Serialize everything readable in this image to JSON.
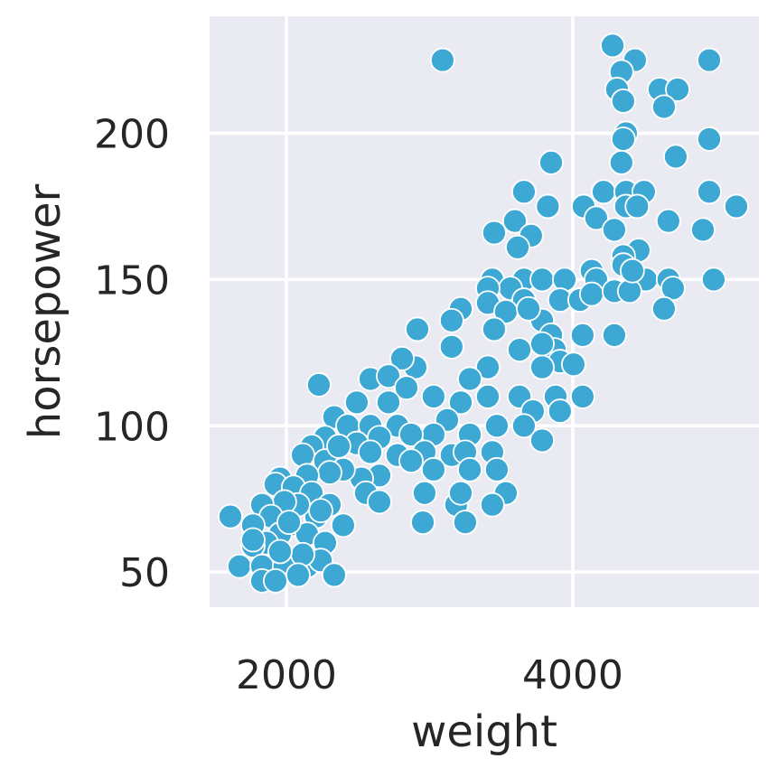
{
  "chart_data": {
    "type": "scatter",
    "title": "",
    "xlabel": "weight",
    "ylabel": "horsepower",
    "xlim": [
      1464,
      5300
    ],
    "ylim": [
      38,
      240
    ],
    "xticks": [
      2000,
      4000
    ],
    "yticks": [
      50,
      100,
      150,
      200
    ],
    "xtick_labels": [
      "2000",
      "4000"
    ],
    "ytick_labels": [
      "50",
      "100",
      "150",
      "200"
    ],
    "grid": true,
    "background_color": "#eaeaf2",
    "grid_color": "#ffffff",
    "marker_color": "#3da8d3",
    "marker_edge_color": "#ffffff",
    "points": [
      [
        3091,
        225
      ],
      [
        4278,
        230
      ],
      [
        4953,
        225
      ],
      [
        4435,
        225
      ],
      [
        4340,
        221
      ],
      [
        4309,
        215
      ],
      [
        4606,
        215
      ],
      [
        4732,
        215
      ],
      [
        4637,
        209
      ],
      [
        4353,
        211
      ],
      [
        4372,
        200
      ],
      [
        4353,
        198
      ],
      [
        4953,
        198
      ],
      [
        4719,
        192
      ],
      [
        3849,
        190
      ],
      [
        4340,
        190
      ],
      [
        4215,
        180
      ],
      [
        3659,
        180
      ],
      [
        4372,
        180
      ],
      [
        4498,
        180
      ],
      [
        4953,
        180
      ],
      [
        5142,
        175
      ],
      [
        4076,
        175
      ],
      [
        3826,
        175
      ],
      [
        4372,
        175
      ],
      [
        4450,
        175
      ],
      [
        4909,
        167
      ],
      [
        4668,
        170
      ],
      [
        4164,
        171
      ],
      [
        3451,
        166
      ],
      [
        3596,
        170
      ],
      [
        3709,
        165
      ],
      [
        3615,
        161
      ],
      [
        4290,
        167
      ],
      [
        4460,
        160
      ],
      [
        4353,
        158
      ],
      [
        4984,
        150
      ],
      [
        3438,
        150
      ],
      [
        3659,
        150
      ],
      [
        3786,
        150
      ],
      [
        3943,
        150
      ],
      [
        4132,
        153
      ],
      [
        4353,
        155
      ],
      [
        4164,
        150
      ],
      [
        4511,
        150
      ],
      [
        4668,
        150
      ],
      [
        4700,
        147
      ],
      [
        4637,
        140
      ],
      [
        3565,
        147
      ],
      [
        3911,
        143
      ],
      [
        4050,
        143
      ],
      [
        4132,
        145
      ],
      [
        3407,
        147
      ],
      [
        3659,
        143
      ],
      [
        4290,
        146
      ],
      [
        4397,
        146
      ],
      [
        4416,
        153
      ],
      [
        3407,
        142
      ],
      [
        3218,
        140
      ],
      [
        3786,
        136
      ],
      [
        3533,
        139
      ],
      [
        3691,
        140
      ],
      [
        4069,
        131
      ],
      [
        4290,
        131
      ],
      [
        3849,
        131
      ],
      [
        3451,
        133
      ],
      [
        3628,
        126
      ],
      [
        3874,
        126
      ],
      [
        3154,
        136
      ],
      [
        2915,
        133
      ],
      [
        3154,
        127
      ],
      [
        3786,
        128
      ],
      [
        3911,
        122
      ],
      [
        4006,
        121
      ],
      [
        3786,
        120
      ],
      [
        3407,
        120
      ],
      [
        2902,
        120
      ],
      [
        2808,
        123
      ],
      [
        3281,
        116
      ],
      [
        2227,
        114
      ],
      [
        2587,
        116
      ],
      [
        2713,
        117
      ],
      [
        2839,
        113
      ],
      [
        3028,
        110
      ],
      [
        3218,
        108
      ],
      [
        3407,
        110
      ],
      [
        3628,
        110
      ],
      [
        4069,
        110
      ],
      [
        3880,
        110
      ],
      [
        3722,
        105
      ],
      [
        3911,
        105
      ],
      [
        2713,
        108
      ],
      [
        2492,
        108
      ],
      [
        2334,
        103
      ],
      [
        2429,
        100
      ],
      [
        2587,
        100
      ],
      [
        2776,
        100
      ],
      [
        3123,
        102
      ],
      [
        3470,
        100
      ],
      [
        3659,
        100
      ],
      [
        3786,
        95
      ],
      [
        3281,
        97
      ],
      [
        3028,
        97
      ],
      [
        2871,
        97
      ],
      [
        2650,
        96
      ],
      [
        2492,
        94
      ],
      [
        2271,
        96
      ],
      [
        2177,
        93
      ],
      [
        2114,
        90
      ],
      [
        2271,
        88
      ],
      [
        2366,
        93
      ],
      [
        2587,
        91
      ],
      [
        2776,
        90
      ],
      [
        2965,
        91
      ],
      [
        3154,
        90
      ],
      [
        3249,
        91
      ],
      [
        3438,
        91
      ],
      [
        3281,
        85
      ],
      [
        3470,
        85
      ],
      [
        2871,
        88
      ],
      [
        3028,
        85
      ],
      [
        2650,
        83
      ],
      [
        2524,
        82
      ],
      [
        2397,
        85
      ],
      [
        2303,
        84
      ],
      [
        2145,
        83
      ],
      [
        1956,
        82
      ],
      [
        1924,
        80
      ],
      [
        2050,
        79
      ],
      [
        2177,
        77
      ],
      [
        2303,
        73
      ],
      [
        2555,
        77
      ],
      [
        2650,
        74
      ],
      [
        2965,
        77
      ],
      [
        3186,
        73
      ],
      [
        3218,
        77
      ],
      [
        3533,
        77
      ],
      [
        3438,
        73
      ],
      [
        3249,
        67
      ],
      [
        2953,
        67
      ],
      [
        2397,
        66
      ],
      [
        2208,
        69
      ],
      [
        2240,
        71
      ],
      [
        2082,
        73
      ],
      [
        1987,
        74
      ],
      [
        1830,
        73
      ],
      [
        1893,
        69
      ],
      [
        1609,
        69
      ],
      [
        1767,
        66
      ],
      [
        2019,
        66
      ],
      [
        2145,
        63
      ],
      [
        2271,
        60
      ],
      [
        1956,
        63
      ],
      [
        1861,
        60
      ],
      [
        1767,
        59
      ],
      [
        1672,
        52
      ],
      [
        1830,
        52
      ],
      [
        1987,
        52
      ],
      [
        2145,
        52
      ],
      [
        2240,
        54
      ],
      [
        2114,
        56
      ],
      [
        1956,
        57
      ],
      [
        1830,
        47
      ],
      [
        1924,
        47
      ],
      [
        2082,
        49
      ],
      [
        2334,
        49
      ],
      [
        2019,
        67
      ],
      [
        1767,
        61
      ]
    ]
  }
}
